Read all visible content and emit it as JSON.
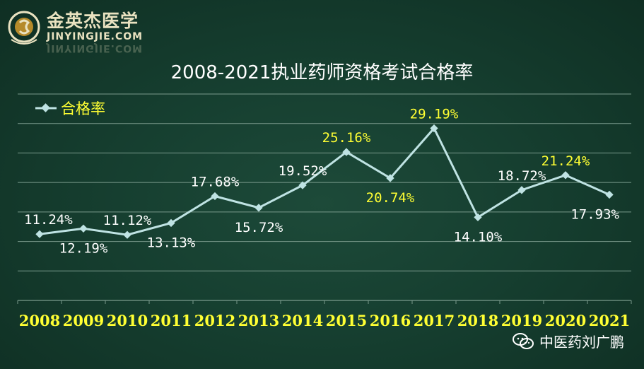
{
  "logo": {
    "name_cn": "金英杰医学",
    "name_en": "JINYINGJIE.COM"
  },
  "watermark": {
    "text": "中医药刘广鹏",
    "icon": "wechat-icon"
  },
  "colors": {
    "line": "#bfe3e3",
    "label_white": "#ffffff",
    "label_yellow": "#ffff33",
    "year_label": "#ffff33",
    "grid": "#7a9a8c"
  },
  "chart_data": {
    "type": "line",
    "title": "2008-2021执业药师资格考试合格率",
    "xlabel": "",
    "ylabel": "",
    "legend": {
      "position": "top-left"
    },
    "grid": true,
    "ylim": [
      0,
      0.35
    ],
    "categories": [
      "2008",
      "2009",
      "2010",
      "2011",
      "2012",
      "2013",
      "2014",
      "2015",
      "2016",
      "2017",
      "2018",
      "2019",
      "2020",
      "2021"
    ],
    "series": [
      {
        "name": "合格率",
        "values": [
          0.1124,
          0.1219,
          0.1112,
          0.1313,
          0.1768,
          0.1572,
          0.1952,
          0.2516,
          0.2074,
          0.2919,
          0.141,
          0.1872,
          0.2124,
          0.1793
        ],
        "labels": [
          "11.24%",
          "12.19%",
          "11.12%",
          "13.13%",
          "17.68%",
          "15.72%",
          "19.52%",
          "25.16%",
          "20.74%",
          "29.19%",
          "14.10%",
          "18.72%",
          "21.24%",
          "17.93%"
        ],
        "label_positions": [
          "above",
          "below",
          "above",
          "below",
          "above",
          "below",
          "above",
          "above",
          "below",
          "above",
          "below",
          "above",
          "above",
          "below"
        ],
        "label_colors": [
          "white",
          "white",
          "white",
          "white",
          "white",
          "white",
          "white",
          "yellow",
          "yellow",
          "yellow",
          "white",
          "white",
          "yellow",
          "white"
        ]
      }
    ]
  }
}
